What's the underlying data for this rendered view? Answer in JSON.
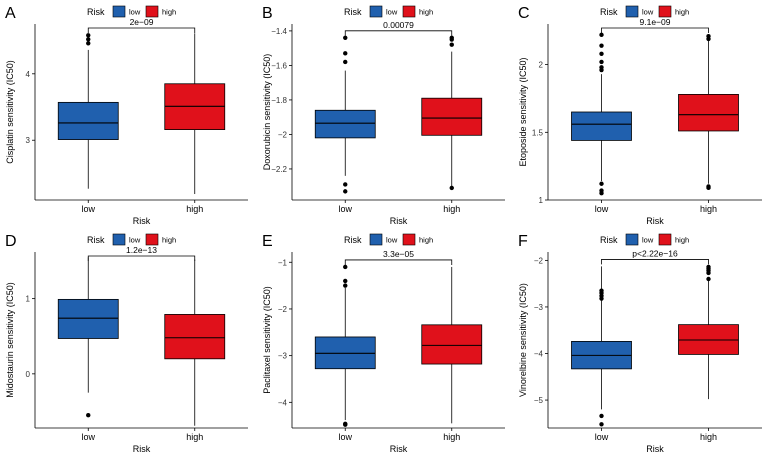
{
  "legend": {
    "title": "Risk",
    "low": "low",
    "high": "high"
  },
  "colors": {
    "low": "#2060AE",
    "high": "#E0111B",
    "axis": "#000000"
  },
  "chart_data": [
    {
      "type": "box",
      "label": "A",
      "ylabel": "Cisplatin sensitivity (IC50)",
      "xlabel": "Risk",
      "categories": [
        "low",
        "high"
      ],
      "ylim": [
        2.1,
        4.75
      ],
      "yticks": [
        3,
        4
      ],
      "pvalue": "2e−09",
      "series": [
        {
          "name": "low",
          "q1": 3.01,
          "median": 3.26,
          "q3": 3.57,
          "whisker_low": 2.27,
          "whisker_high": 4.36,
          "outliers": [
            4.46,
            4.52,
            4.58
          ]
        },
        {
          "name": "high",
          "q1": 3.16,
          "median": 3.51,
          "q3": 3.85,
          "whisker_low": 2.19,
          "whisker_high": 4.61,
          "outliers": []
        }
      ]
    },
    {
      "type": "box",
      "label": "B",
      "ylabel": "Doxorubicin sensitivity (IC50)",
      "xlabel": "Risk",
      "categories": [
        "low",
        "high"
      ],
      "ylim": [
        -2.38,
        -1.36
      ],
      "yticks": [
        -2.2,
        -2.0,
        -1.8,
        -1.6,
        -1.4
      ],
      "pvalue": "0.00079",
      "series": [
        {
          "name": "low",
          "q1": -2.02,
          "median": -1.935,
          "q3": -1.86,
          "whisker_low": -2.24,
          "whisker_high": -1.63,
          "outliers": [
            -2.29,
            -2.33,
            -1.58,
            -1.53,
            -1.44
          ]
        },
        {
          "name": "high",
          "q1": -2.005,
          "median": -1.905,
          "q3": -1.79,
          "whisker_low": -2.3,
          "whisker_high": -1.52,
          "outliers": [
            -2.31,
            -1.48,
            -1.45,
            -1.44
          ]
        }
      ]
    },
    {
      "type": "box",
      "label": "C",
      "ylabel": "Etoposide sensitivity (IC50)",
      "xlabel": "Risk",
      "categories": [
        "low",
        "high"
      ],
      "ylim": [
        1.0,
        2.3
      ],
      "yticks": [
        1.0,
        1.5,
        2.0
      ],
      "pvalue": "9.1e−09",
      "series": [
        {
          "name": "low",
          "q1": 1.44,
          "median": 1.56,
          "q3": 1.65,
          "whisker_low": 1.14,
          "whisker_high": 1.93,
          "outliers": [
            1.05,
            1.07,
            1.12,
            1.96,
            1.98,
            2.02,
            2.08,
            2.14,
            2.22
          ]
        },
        {
          "name": "high",
          "q1": 1.51,
          "median": 1.63,
          "q3": 1.78,
          "whisker_low": 1.12,
          "whisker_high": 2.18,
          "outliers": [
            1.09,
            1.1,
            2.19,
            2.21
          ]
        }
      ]
    },
    {
      "type": "box",
      "label": "D",
      "ylabel": "Midostaurin sensitivity (IC50)",
      "xlabel": "Risk",
      "categories": [
        "low",
        "high"
      ],
      "ylim": [
        -0.72,
        1.62
      ],
      "yticks": [
        0,
        1
      ],
      "pvalue": "1.2e−13",
      "series": [
        {
          "name": "low",
          "q1": 0.47,
          "median": 0.74,
          "q3": 0.99,
          "whisker_low": -0.25,
          "whisker_high": 1.55,
          "outliers": [
            -0.55
          ]
        },
        {
          "name": "high",
          "q1": 0.2,
          "median": 0.48,
          "q3": 0.79,
          "whisker_low": -0.69,
          "whisker_high": 1.52,
          "outliers": []
        }
      ]
    },
    {
      "type": "box",
      "label": "E",
      "ylabel": "Paclitaxel sensitivity (IC50)",
      "xlabel": "Risk",
      "categories": [
        "low",
        "high"
      ],
      "ylim": [
        -4.55,
        -0.78
      ],
      "yticks": [
        -4,
        -3,
        -2,
        -1
      ],
      "pvalue": "3.3e−05",
      "series": [
        {
          "name": "low",
          "q1": -3.28,
          "median": -2.95,
          "q3": -2.6,
          "whisker_low": -4.38,
          "whisker_high": -1.55,
          "outliers": [
            -4.46,
            -4.48,
            -1.5,
            -1.4,
            -1.1
          ]
        },
        {
          "name": "high",
          "q1": -3.18,
          "median": -2.78,
          "q3": -2.34,
          "whisker_low": -4.45,
          "whisker_high": -1.1,
          "outliers": []
        }
      ]
    },
    {
      "type": "box",
      "label": "F",
      "ylabel": "Vinorelbine sensitivity (IC50)",
      "xlabel": "Risk",
      "categories": [
        "low",
        "high"
      ],
      "ylim": [
        -5.6,
        -1.82
      ],
      "yticks": [
        -5,
        -4,
        -3,
        -2
      ],
      "pvalue": "p<2.22e−16",
      "series": [
        {
          "name": "low",
          "q1": -4.33,
          "median": -4.04,
          "q3": -3.74,
          "whisker_low": -5.2,
          "whisker_high": -2.13,
          "outliers": [
            -5.52,
            -5.34,
            -2.65,
            -2.7,
            -2.76,
            -2.82
          ]
        },
        {
          "name": "high",
          "q1": -4.02,
          "median": -3.71,
          "q3": -3.38,
          "whisker_low": -4.98,
          "whisker_high": -2.44,
          "outliers": [
            -2.14,
            -2.18,
            -2.22,
            -2.27,
            -2.4
          ]
        }
      ]
    }
  ]
}
